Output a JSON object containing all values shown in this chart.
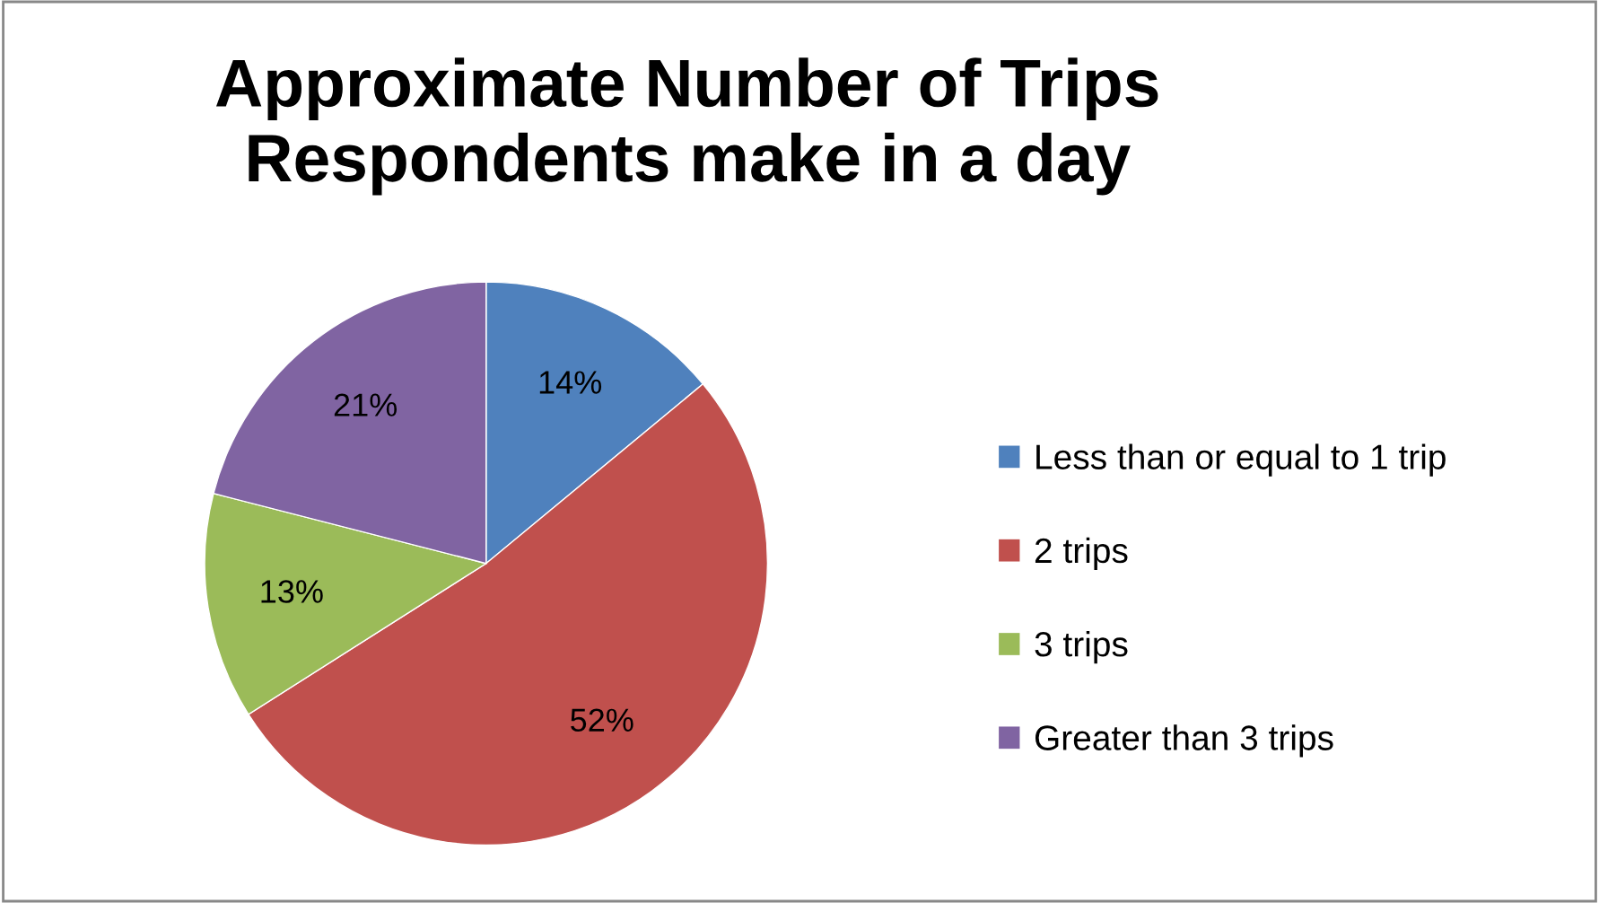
{
  "chart_data": {
    "type": "pie",
    "title": "Approximate Number of Trips\nRespondents make in a day",
    "categories": [
      "Less than or equal to 1 trip",
      "2 trips",
      "3 trips",
      "Greater than 3 trips"
    ],
    "values": [
      14,
      52,
      13,
      21
    ],
    "colors": [
      "#4f81bd",
      "#c0504d",
      "#9bbb59",
      "#8064a2"
    ],
    "value_labels": [
      "14%",
      "52%",
      "13%",
      "21%"
    ],
    "legend": "right"
  }
}
